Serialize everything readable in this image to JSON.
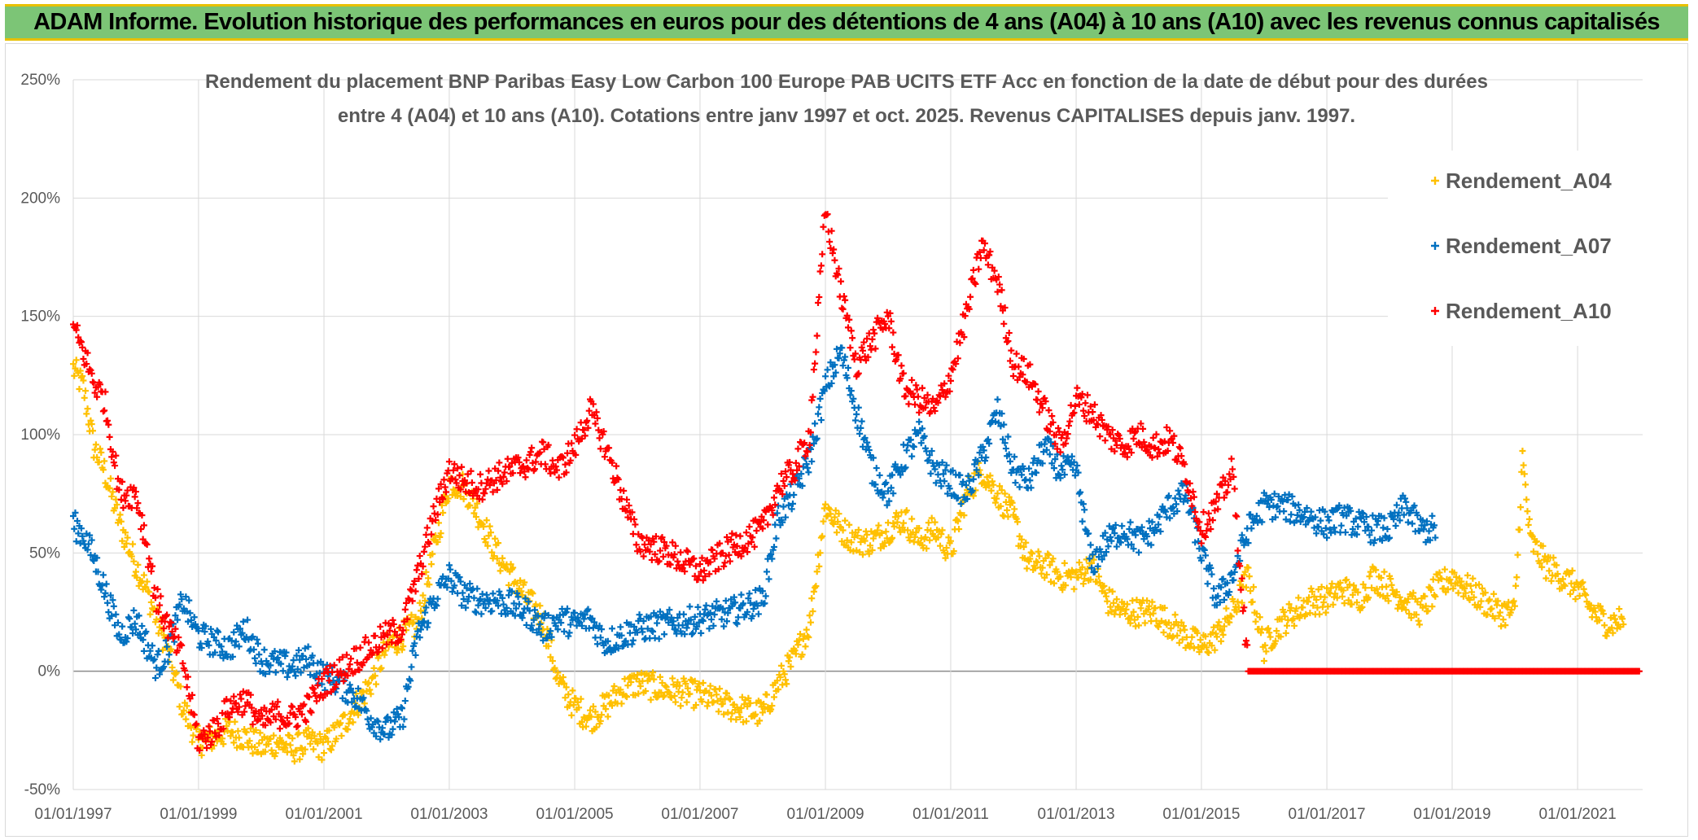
{
  "header": {
    "title": "ADAM Informe. Evolution historique des performances en euros pour des détentions de 4 ans (A04) à 10 ans (A10) avec les revenus connus capitalisés"
  },
  "chart_data": {
    "type": "scatter",
    "title_line1": "Rendement du placement BNP Paribas Easy Low Carbon 100 Europe PAB UCITS ETF Acc en fonction de la date de début pour des durées",
    "title_line2": "entre 4 (A04) et 10 ans (A10). Cotations entre janv 1997 et oct. 2025. Revenus CAPITALISES depuis janv. 1997.",
    "x_label": "",
    "y_label": "",
    "x_range": [
      "1997-01-01",
      "2022-01-15"
    ],
    "y_range": [
      -50,
      250
    ],
    "y_ticks": [
      "-50%",
      "0%",
      "50%",
      "100%",
      "150%",
      "200%",
      "250%"
    ],
    "y_tick_values": [
      -50,
      0,
      50,
      100,
      150,
      200,
      250
    ],
    "x_ticks": [
      "01/01/1997",
      "01/01/1999",
      "01/01/2001",
      "01/01/2003",
      "01/01/2005",
      "01/01/2007",
      "01/01/2009",
      "01/01/2011",
      "01/01/2013",
      "01/01/2015",
      "01/01/2017",
      "01/01/2019",
      "01/01/2021"
    ],
    "x_tick_values": [
      "1997-01-01",
      "1999-01-01",
      "2001-01-01",
      "2003-01-01",
      "2005-01-01",
      "2007-01-01",
      "2009-01-01",
      "2011-01-01",
      "2013-01-01",
      "2015-01-01",
      "2017-01-01",
      "2019-01-01",
      "2021-01-01"
    ],
    "grid": "horizontal and vertical",
    "legend_position": "top-right",
    "marker": "+",
    "series": [
      {
        "name": "Rendement_A04",
        "color": "#ffc000",
        "points": [
          [
            "1997-01-01",
            128
          ],
          [
            "1997-03-01",
            120
          ],
          [
            "1997-05-01",
            95
          ],
          [
            "1997-07-01",
            85
          ],
          [
            "1997-10-01",
            62
          ],
          [
            "1998-01-01",
            45
          ],
          [
            "1998-03-01",
            35
          ],
          [
            "1998-05-01",
            22
          ],
          [
            "1998-07-01",
            10
          ],
          [
            "1998-10-01",
            -15
          ],
          [
            "1999-01-01",
            -30
          ],
          [
            "1999-04-01",
            -28
          ],
          [
            "1999-07-01",
            -25
          ],
          [
            "1999-10-01",
            -28
          ],
          [
            "2000-01-01",
            -32
          ],
          [
            "2000-04-01",
            -30
          ],
          [
            "2000-07-01",
            -33
          ],
          [
            "2000-10-01",
            -30
          ],
          [
            "2001-01-01",
            -32
          ],
          [
            "2001-04-01",
            -25
          ],
          [
            "2001-07-01",
            -15
          ],
          [
            "2001-10-01",
            -5
          ],
          [
            "2002-01-01",
            10
          ],
          [
            "2002-04-01",
            15
          ],
          [
            "2002-07-01",
            20
          ],
          [
            "2002-10-01",
            50
          ],
          [
            "2003-01-01",
            80
          ],
          [
            "2003-04-01",
            78
          ],
          [
            "2003-07-01",
            65
          ],
          [
            "2003-10-01",
            50
          ],
          [
            "2004-01-01",
            40
          ],
          [
            "2004-04-01",
            30
          ],
          [
            "2004-07-01",
            22
          ],
          [
            "2004-10-01",
            -5
          ],
          [
            "2005-01-01",
            -15
          ],
          [
            "2005-04-01",
            -20
          ],
          [
            "2005-07-01",
            -15
          ],
          [
            "2005-10-01",
            -8
          ],
          [
            "2006-01-01",
            -5
          ],
          [
            "2006-07-01",
            -8
          ],
          [
            "2007-01-01",
            -10
          ],
          [
            "2007-07-01",
            -15
          ],
          [
            "2008-01-01",
            -18
          ],
          [
            "2008-04-01",
            -5
          ],
          [
            "2008-07-01",
            5
          ],
          [
            "2008-10-01",
            20
          ],
          [
            "2009-01-01",
            70
          ],
          [
            "2009-04-01",
            60
          ],
          [
            "2009-07-01",
            55
          ],
          [
            "2009-10-01",
            55
          ],
          [
            "2010-01-01",
            60
          ],
          [
            "2010-04-01",
            65
          ],
          [
            "2010-07-01",
            55
          ],
          [
            "2010-10-01",
            60
          ],
          [
            "2011-01-01",
            50
          ],
          [
            "2011-04-01",
            75
          ],
          [
            "2011-07-01",
            85
          ],
          [
            "2011-10-01",
            75
          ],
          [
            "2012-01-01",
            65
          ],
          [
            "2012-04-01",
            45
          ],
          [
            "2012-07-01",
            45
          ],
          [
            "2012-10-01",
            40
          ],
          [
            "2013-01-01",
            40
          ],
          [
            "2013-04-01",
            45
          ],
          [
            "2013-07-01",
            30
          ],
          [
            "2013-10-01",
            25
          ],
          [
            "2014-01-01",
            25
          ],
          [
            "2014-04-01",
            25
          ],
          [
            "2014-07-01",
            20
          ],
          [
            "2014-10-01",
            15
          ],
          [
            "2015-01-01",
            10
          ],
          [
            "2015-04-01",
            15
          ],
          [
            "2015-07-01",
            25
          ],
          [
            "2015-10-01",
            40
          ],
          [
            "2016-01-01",
            10
          ],
          [
            "2016-04-01",
            20
          ],
          [
            "2016-07-01",
            25
          ],
          [
            "2016-10-01",
            30
          ],
          [
            "2017-01-01",
            30
          ],
          [
            "2017-04-01",
            35
          ],
          [
            "2017-07-01",
            30
          ],
          [
            "2017-10-01",
            40
          ],
          [
            "2018-01-01",
            35
          ],
          [
            "2018-04-01",
            30
          ],
          [
            "2018-07-01",
            25
          ],
          [
            "2018-10-01",
            35
          ],
          [
            "2019-01-01",
            40
          ],
          [
            "2019-04-01",
            35
          ],
          [
            "2019-07-01",
            30
          ],
          [
            "2019-10-01",
            25
          ],
          [
            "2020-01-01",
            25
          ],
          [
            "2020-02-15",
            90
          ],
          [
            "2020-04-01",
            55
          ],
          [
            "2020-07-01",
            45
          ],
          [
            "2020-10-01",
            40
          ],
          [
            "2021-01-01",
            35
          ],
          [
            "2021-04-01",
            25
          ],
          [
            "2021-07-01",
            20
          ],
          [
            "2021-10-01",
            22
          ]
        ]
      },
      {
        "name": "Rendement_A07",
        "color": "#0070c0",
        "points": [
          [
            "1997-01-01",
            62
          ],
          [
            "1997-03-01",
            58
          ],
          [
            "1997-05-01",
            48
          ],
          [
            "1997-07-01",
            35
          ],
          [
            "1997-10-01",
            15
          ],
          [
            "1998-01-01",
            22
          ],
          [
            "1998-03-01",
            12
          ],
          [
            "1998-05-01",
            2
          ],
          [
            "1998-07-01",
            8
          ],
          [
            "1998-10-01",
            30
          ],
          [
            "1999-01-01",
            15
          ],
          [
            "1999-04-01",
            12
          ],
          [
            "1999-07-01",
            10
          ],
          [
            "1999-10-01",
            18
          ],
          [
            "2000-01-01",
            5
          ],
          [
            "2000-04-01",
            3
          ],
          [
            "2000-07-01",
            2
          ],
          [
            "2000-10-01",
            5
          ],
          [
            "2001-01-01",
            -2
          ],
          [
            "2001-04-01",
            -5
          ],
          [
            "2001-07-01",
            -10
          ],
          [
            "2001-10-01",
            -20
          ],
          [
            "2002-01-01",
            -25
          ],
          [
            "2002-04-01",
            -20
          ],
          [
            "2002-07-01",
            15
          ],
          [
            "2002-10-01",
            30
          ],
          [
            "2003-01-01",
            40
          ],
          [
            "2003-04-01",
            32
          ],
          [
            "2003-07-01",
            30
          ],
          [
            "2003-10-01",
            30
          ],
          [
            "2004-01-01",
            28
          ],
          [
            "2004-04-01",
            25
          ],
          [
            "2004-07-01",
            18
          ],
          [
            "2004-10-01",
            22
          ],
          [
            "2005-01-01",
            20
          ],
          [
            "2005-04-01",
            22
          ],
          [
            "2005-07-01",
            12
          ],
          [
            "2005-10-01",
            15
          ],
          [
            "2006-01-01",
            18
          ],
          [
            "2006-07-01",
            20
          ],
          [
            "2007-01-01",
            22
          ],
          [
            "2007-07-01",
            25
          ],
          [
            "2008-01-01",
            30
          ],
          [
            "2008-04-01",
            65
          ],
          [
            "2008-07-01",
            75
          ],
          [
            "2008-10-01",
            90
          ],
          [
            "2009-01-01",
            120
          ],
          [
            "2009-04-01",
            135
          ],
          [
            "2009-07-01",
            110
          ],
          [
            "2009-10-01",
            85
          ],
          [
            "2010-01-01",
            75
          ],
          [
            "2010-04-01",
            90
          ],
          [
            "2010-07-01",
            100
          ],
          [
            "2010-10-01",
            85
          ],
          [
            "2011-01-01",
            80
          ],
          [
            "2011-04-01",
            75
          ],
          [
            "2011-07-01",
            90
          ],
          [
            "2011-10-01",
            110
          ],
          [
            "2012-01-01",
            85
          ],
          [
            "2012-04-01",
            80
          ],
          [
            "2012-07-01",
            95
          ],
          [
            "2012-10-01",
            85
          ],
          [
            "2013-01-01",
            85
          ],
          [
            "2013-04-01",
            45
          ],
          [
            "2013-07-01",
            55
          ],
          [
            "2013-10-01",
            60
          ],
          [
            "2014-01-01",
            55
          ],
          [
            "2014-04-01",
            60
          ],
          [
            "2014-07-01",
            70
          ],
          [
            "2014-10-01",
            75
          ],
          [
            "2015-01-01",
            50
          ],
          [
            "2015-04-01",
            30
          ],
          [
            "2015-07-01",
            40
          ],
          [
            "2015-10-01",
            60
          ],
          [
            "2016-01-01",
            70
          ],
          [
            "2016-04-01",
            70
          ],
          [
            "2016-07-01",
            68
          ],
          [
            "2016-10-01",
            65
          ],
          [
            "2017-01-01",
            62
          ],
          [
            "2017-04-01",
            65
          ],
          [
            "2017-07-01",
            62
          ],
          [
            "2017-10-01",
            60
          ],
          [
            "2018-01-01",
            60
          ],
          [
            "2018-04-01",
            70
          ],
          [
            "2018-07-01",
            60
          ],
          [
            "2018-10-01",
            60
          ]
        ]
      },
      {
        "name": "Rendement_A10",
        "color": "#ff0000",
        "points": [
          [
            "1997-01-01",
            145
          ],
          [
            "1997-03-01",
            135
          ],
          [
            "1997-05-01",
            122
          ],
          [
            "1997-07-01",
            115
          ],
          [
            "1997-10-01",
            75
          ],
          [
            "1998-01-01",
            75
          ],
          [
            "1998-03-01",
            55
          ],
          [
            "1998-05-01",
            30
          ],
          [
            "1998-07-01",
            20
          ],
          [
            "1998-10-01",
            5
          ],
          [
            "1999-01-01",
            -30
          ],
          [
            "1999-04-01",
            -25
          ],
          [
            "1999-07-01",
            -15
          ],
          [
            "1999-10-01",
            -12
          ],
          [
            "2000-01-01",
            -22
          ],
          [
            "2000-04-01",
            -18
          ],
          [
            "2000-07-01",
            -20
          ],
          [
            "2000-10-01",
            -15
          ],
          [
            "2001-01-01",
            -5
          ],
          [
            "2001-04-01",
            0
          ],
          [
            "2001-07-01",
            5
          ],
          [
            "2001-10-01",
            10
          ],
          [
            "2002-01-01",
            15
          ],
          [
            "2002-04-01",
            18
          ],
          [
            "2002-07-01",
            40
          ],
          [
            "2002-10-01",
            65
          ],
          [
            "2003-01-01",
            85
          ],
          [
            "2003-04-01",
            80
          ],
          [
            "2003-07-01",
            78
          ],
          [
            "2003-10-01",
            82
          ],
          [
            "2004-01-01",
            85
          ],
          [
            "2004-04-01",
            88
          ],
          [
            "2004-07-01",
            92
          ],
          [
            "2004-10-01",
            85
          ],
          [
            "2005-01-01",
            95
          ],
          [
            "2005-04-01",
            110
          ],
          [
            "2005-07-01",
            95
          ],
          [
            "2005-10-01",
            75
          ],
          [
            "2006-01-01",
            55
          ],
          [
            "2006-07-01",
            50
          ],
          [
            "2007-01-01",
            42
          ],
          [
            "2007-07-01",
            52
          ],
          [
            "2008-01-01",
            60
          ],
          [
            "2008-04-01",
            78
          ],
          [
            "2008-07-01",
            85
          ],
          [
            "2008-10-01",
            100
          ],
          [
            "2009-01-01",
            195
          ],
          [
            "2009-04-01",
            160
          ],
          [
            "2009-07-01",
            130
          ],
          [
            "2009-10-01",
            140
          ],
          [
            "2010-01-01",
            150
          ],
          [
            "2010-04-01",
            120
          ],
          [
            "2010-07-01",
            115
          ],
          [
            "2010-10-01",
            110
          ],
          [
            "2011-01-01",
            125
          ],
          [
            "2011-04-01",
            150
          ],
          [
            "2011-07-01",
            180
          ],
          [
            "2011-10-01",
            165
          ],
          [
            "2012-01-01",
            130
          ],
          [
            "2012-04-01",
            125
          ],
          [
            "2012-07-01",
            110
          ],
          [
            "2012-10-01",
            95
          ],
          [
            "2013-01-01",
            115
          ],
          [
            "2013-04-01",
            110
          ],
          [
            "2013-07-01",
            100
          ],
          [
            "2013-10-01",
            95
          ],
          [
            "2014-01-01",
            100
          ],
          [
            "2014-04-01",
            95
          ],
          [
            "2014-07-01",
            98
          ],
          [
            "2014-10-01",
            85
          ],
          [
            "2015-01-01",
            60
          ],
          [
            "2015-04-01",
            70
          ],
          [
            "2015-07-01",
            85
          ],
          [
            "2015-10-01",
            0
          ],
          [
            "2016-01-01",
            0
          ],
          [
            "2016-07-01",
            0
          ],
          [
            "2017-01-01",
            0
          ],
          [
            "2017-07-01",
            0
          ],
          [
            "2018-01-01",
            0
          ],
          [
            "2018-07-01",
            0
          ],
          [
            "2019-01-01",
            0
          ],
          [
            "2019-07-01",
            0
          ],
          [
            "2020-01-01",
            0
          ],
          [
            "2020-07-01",
            0
          ],
          [
            "2021-01-01",
            0
          ],
          [
            "2021-07-01",
            0
          ],
          [
            "2022-01-01",
            0
          ]
        ]
      }
    ]
  }
}
